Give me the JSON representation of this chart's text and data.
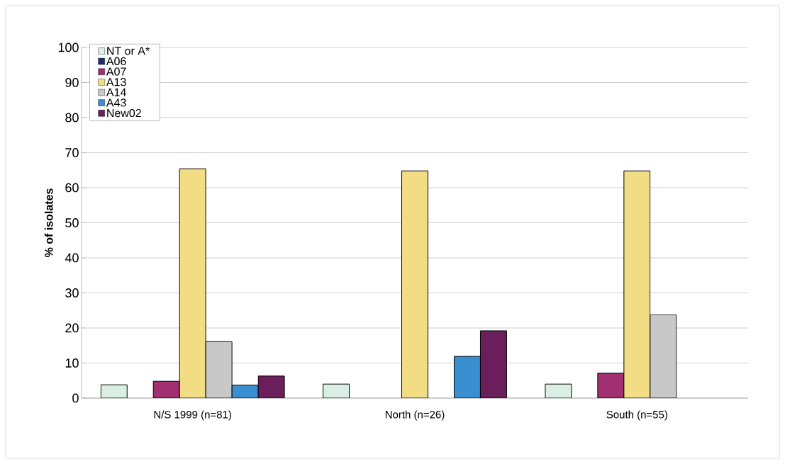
{
  "chart_data": {
    "type": "bar",
    "ylabel": "% of isolates",
    "categories": [
      "N/S 1999 (n=81)",
      "North (n=26)",
      "South (n=55)"
    ],
    "series": [
      {
        "name": "NT or A*",
        "color": "#d9efe3",
        "values": [
          3.8,
          4.0,
          4.0
        ]
      },
      {
        "name": "A06",
        "color": "#1f2a6b",
        "values": [
          null,
          null,
          null
        ]
      },
      {
        "name": "A07",
        "color": "#a03070",
        "values": [
          4.8,
          null,
          7.1
        ]
      },
      {
        "name": "A13",
        "color": "#f2dc84",
        "values": [
          65.4,
          64.8,
          64.8
        ]
      },
      {
        "name": "A14",
        "color": "#c8c8c8",
        "values": [
          16.1,
          null,
          23.8
        ]
      },
      {
        "name": "A43",
        "color": "#3a8fd0",
        "values": [
          3.7,
          11.9,
          null
        ]
      },
      {
        "name": "New02",
        "color": "#6a1f5c",
        "values": [
          6.3,
          19.2,
          null
        ]
      }
    ],
    "ylim": [
      0,
      100
    ],
    "yticks": [
      0,
      10,
      20,
      30,
      40,
      50,
      60,
      70,
      80,
      90,
      100
    ],
    "grid": "y",
    "legend": "top left"
  }
}
